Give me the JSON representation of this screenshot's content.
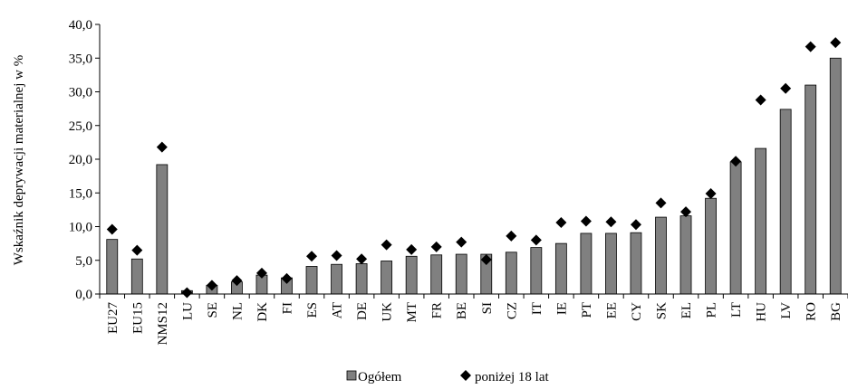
{
  "chart_data": {
    "type": "bar",
    "ylabel": "Wskaźnik deprywacji materialnej w %",
    "ylim": [
      0,
      40
    ],
    "yticks": [
      "0,0",
      "5,0",
      "10,0",
      "15,0",
      "20,0",
      "25,0",
      "30,0",
      "35,0",
      "40,0"
    ],
    "grid": false,
    "legend_position": "bottom",
    "categories": [
      "EU27",
      "EU15",
      "NMS12",
      "LU",
      "SE",
      "NL",
      "DK",
      "FI",
      "ES",
      "AT",
      "DE",
      "UK",
      "MT",
      "FR",
      "BE",
      "SI",
      "CZ",
      "IT",
      "IE",
      "PT",
      "EE",
      "CY",
      "SK",
      "EL",
      "PL",
      "LT",
      "HU",
      "LV",
      "RO",
      "BG"
    ],
    "series": [
      {
        "name": "Ogółem",
        "type": "bar",
        "color": "#808080",
        "values": [
          8.1,
          5.2,
          19.2,
          0.5,
          1.3,
          1.8,
          2.8,
          2.4,
          4.1,
          4.4,
          4.5,
          4.9,
          5.6,
          5.8,
          5.9,
          5.9,
          6.2,
          6.9,
          7.5,
          9.0,
          9.0,
          9.1,
          11.4,
          11.6,
          14.2,
          19.6,
          21.6,
          27.4,
          31.0,
          35.0
        ]
      },
      {
        "name": "poniżej 18 lat",
        "type": "scatter",
        "marker": "diamond",
        "color": "#000000",
        "values": [
          9.6,
          6.5,
          21.8,
          0.2,
          1.3,
          2.0,
          3.1,
          2.3,
          5.6,
          5.7,
          5.2,
          7.3,
          6.6,
          7.0,
          7.7,
          5.1,
          8.6,
          8.0,
          10.6,
          10.8,
          10.7,
          10.3,
          13.5,
          12.2,
          14.9,
          19.7,
          28.8,
          30.5,
          36.7,
          37.3
        ]
      }
    ]
  }
}
